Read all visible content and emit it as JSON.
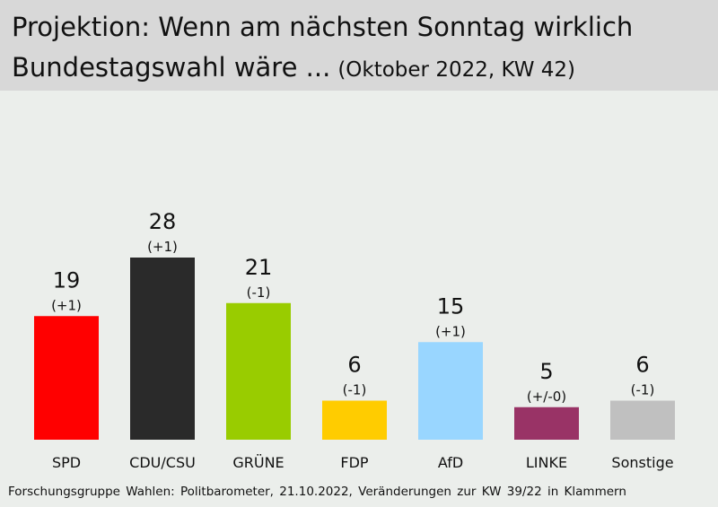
{
  "header": {
    "title_line1": "Projektion: Wenn am nächsten Sonntag wirklich",
    "title_line2": "Bundestagswahl wäre ...",
    "subtitle": "(Oktober 2022, KW 42)"
  },
  "source": "Forschungsgruppe Wahlen: Politbarometer, 21.10.2022, Veränderungen zur KW 39/22 in Klammern",
  "chart_data": {
    "type": "bar",
    "title": "Projektion: Wenn am nächsten Sonntag wirklich Bundestagswahl wäre ...",
    "subtitle": "(Oktober 2022, KW 42)",
    "xlabel": "",
    "ylabel": "",
    "ylim": [
      0,
      28
    ],
    "grid": false,
    "legend": "none",
    "categories": [
      "SPD",
      "CDU/CSU",
      "GRÜNE",
      "FDP",
      "AfD",
      "LINKE",
      "Sonstige"
    ],
    "values": [
      19,
      28,
      21,
      6,
      15,
      5,
      6
    ],
    "changes": [
      "(+1)",
      "(+1)",
      "(-1)",
      "(-1)",
      "(+1)",
      "(+/-0)",
      "(-1)"
    ],
    "colors": [
      "#ff0000",
      "#2a2a2a",
      "#99cc00",
      "#ffcc00",
      "#99d6ff",
      "#993366",
      "#c0c0c0"
    ]
  }
}
